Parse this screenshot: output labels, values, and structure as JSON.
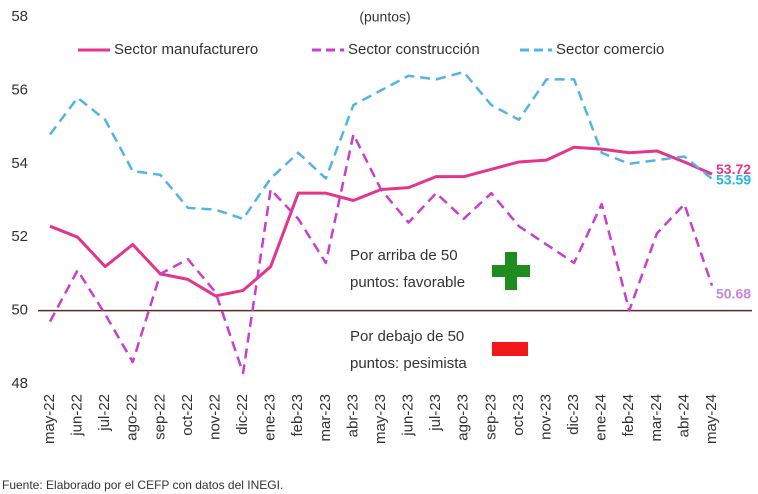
{
  "chart_data": {
    "type": "line",
    "subtitle": "(puntos)",
    "categories": [
      "may-22",
      "jun-22",
      "jul-22",
      "ago-22",
      "sep-22",
      "oct-22",
      "nov-22",
      "dic-22",
      "ene-23",
      "feb-23",
      "mar-23",
      "abr-23",
      "may-23",
      "jun-23",
      "jul-23",
      "ago-23",
      "sep-23",
      "oct-23",
      "nov-23",
      "dic-23",
      "ene-24",
      "feb-24",
      "mar-24",
      "abr-24",
      "may-24"
    ],
    "series": [
      {
        "name": "Sector manufacturero",
        "color": "#e5358b",
        "dashed": false,
        "values": [
          52.3,
          52.0,
          51.2,
          51.8,
          51.0,
          50.85,
          50.4,
          50.55,
          51.2,
          53.2,
          53.2,
          53.0,
          53.3,
          53.35,
          53.65,
          53.65,
          53.85,
          54.05,
          54.1,
          54.45,
          54.4,
          54.3,
          54.35,
          54.05,
          53.72
        ]
      },
      {
        "name": "Sector construcción",
        "color": "#c63fcf",
        "dashed": true,
        "values": [
          49.7,
          51.1,
          49.9,
          48.6,
          51.0,
          51.4,
          50.5,
          48.3,
          53.3,
          52.5,
          51.3,
          54.8,
          53.3,
          52.4,
          53.2,
          52.5,
          53.2,
          52.3,
          51.8,
          51.3,
          52.9,
          50.0,
          52.1,
          52.9,
          50.68
        ]
      },
      {
        "name": "Sector comercio",
        "color": "#52b4e6",
        "dashed": true,
        "values": [
          54.8,
          55.8,
          55.2,
          53.8,
          53.7,
          52.8,
          52.75,
          52.5,
          53.6,
          54.3,
          53.6,
          55.6,
          56.0,
          56.4,
          56.3,
          56.5,
          55.6,
          55.2,
          56.3,
          56.3,
          54.3,
          54.0,
          54.1,
          54.2,
          53.59
        ]
      }
    ],
    "label_colors": [
      "#e5358b",
      "#c984e0",
      "#22b5e8"
    ],
    "ylim": [
      48,
      58
    ],
    "yticks": [
      48,
      50,
      52,
      54,
      56,
      58
    ],
    "grid": false,
    "reference_line": 50,
    "reference_color": "#5a2626",
    "annotations": [
      {
        "lines": [
          "Por arriba de 50",
          "puntos: favorable"
        ]
      },
      {
        "lines": [
          "Por debajo de 50",
          "puntos: pesimista"
        ]
      }
    ],
    "source": "Fuente: Elaborado por el CEFP con datos del INEGI."
  }
}
